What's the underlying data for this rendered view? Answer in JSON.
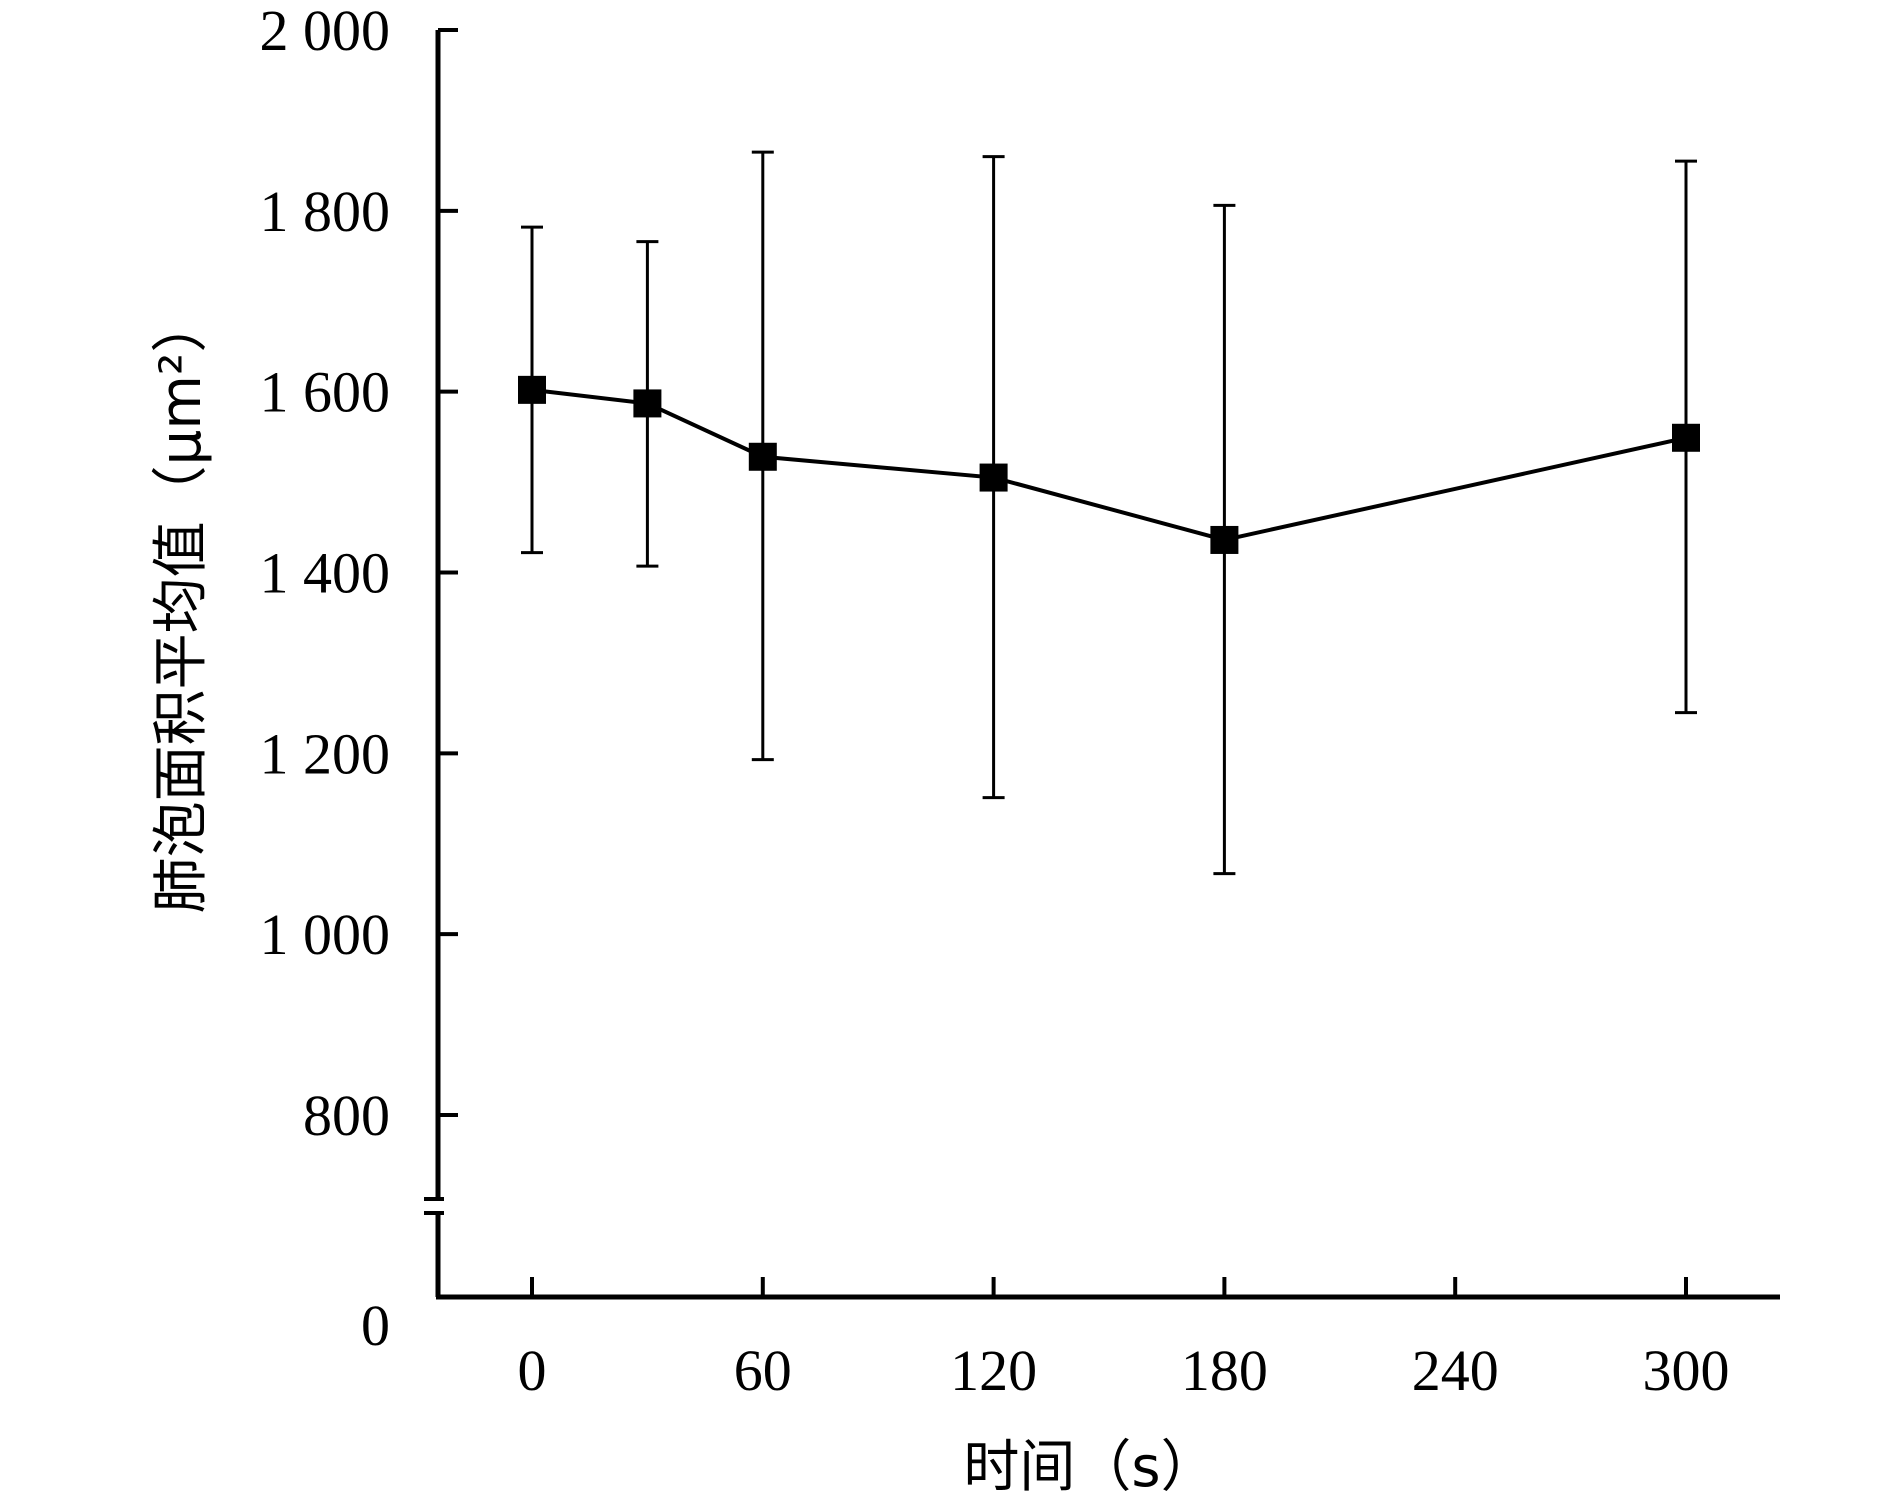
{
  "chart_data": {
    "type": "line",
    "title": "",
    "xlabel": "时间（s）",
    "ylabel": "肺泡面积平均值（μm²）",
    "x_ticks": [
      0,
      60,
      120,
      180,
      240,
      300
    ],
    "x_tick_labels": [
      "0",
      "60",
      "120",
      "180",
      "240",
      "300"
    ],
    "y_ticks": [
      800,
      1000,
      1200,
      1400,
      1600,
      1800,
      2000
    ],
    "y_tick_labels": [
      "800",
      "1 000",
      "1 200",
      "1 400",
      "1 600",
      "1 800",
      "2 000"
    ],
    "y_zero_label": "0",
    "y_axis_break": true,
    "xlim": [
      -25,
      324
    ],
    "ylim": [
      0,
      2000
    ],
    "grid": false,
    "marker": "square",
    "color": "#000000",
    "series": [
      {
        "x": [
          0,
          30,
          60,
          120,
          180,
          300
        ],
        "y": [
          1602,
          1587,
          1528,
          1505,
          1436,
          1549
        ],
        "error_low": [
          1422,
          1407,
          1193,
          1151,
          1067,
          1245
        ],
        "error_high": [
          1782,
          1766,
          1865,
          1860,
          1806,
          1855
        ]
      }
    ]
  }
}
